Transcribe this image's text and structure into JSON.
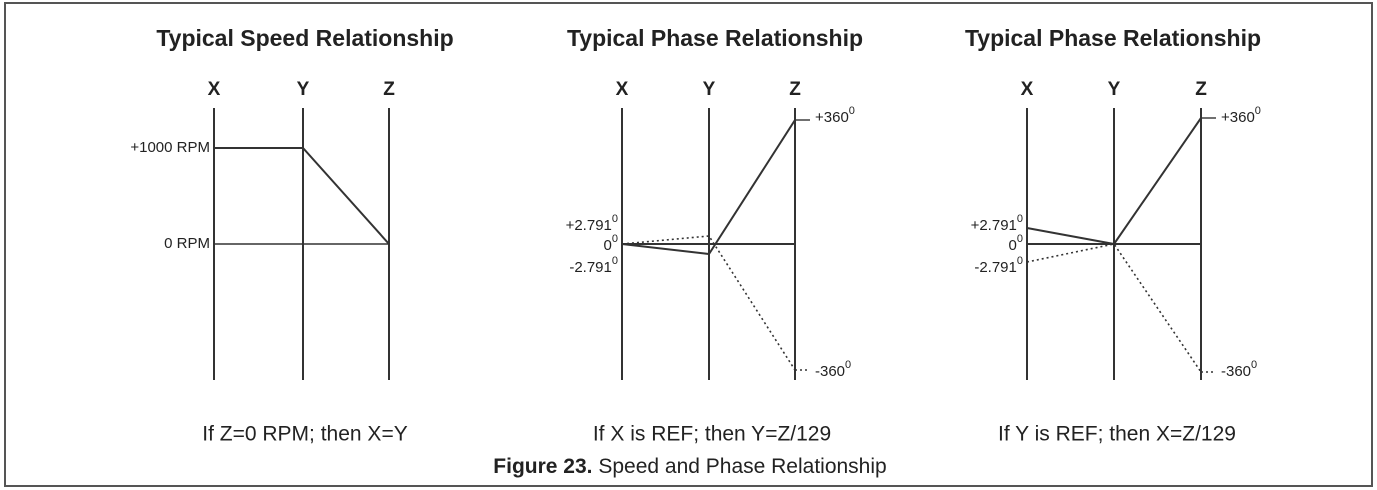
{
  "panels": [
    {
      "title": "Typical Speed Relationship",
      "axes": [
        "X",
        "Y",
        "Z"
      ],
      "labels": [
        {
          "text": "+1000 RPM"
        },
        {
          "text": "0 RPM"
        }
      ],
      "caption": "If Z=0 RPM; then X=Y"
    },
    {
      "title": "Typical Phase Relationship",
      "axes": [
        "X",
        "Y",
        "Z"
      ],
      "labels": [
        {
          "text": "+2.791",
          "sup": "0"
        },
        {
          "text": "0",
          "sup": "0"
        },
        {
          "text": "-2.791",
          "sup": "0"
        },
        {
          "text": "+360",
          "sup": "0"
        },
        {
          "text": "-360",
          "sup": "0"
        }
      ],
      "caption": "If X is REF; then Y=Z/129"
    },
    {
      "title": "Typical Phase Relationship",
      "axes": [
        "X",
        "Y",
        "Z"
      ],
      "labels": [
        {
          "text": "+2.791",
          "sup": "0"
        },
        {
          "text": "0",
          "sup": "0"
        },
        {
          "text": "-2.791",
          "sup": "0"
        },
        {
          "text": "+360",
          "sup": "0"
        },
        {
          "text": "-360",
          "sup": "0"
        }
      ],
      "caption": "If Y is REF; then X=Z/129"
    }
  ],
  "figure": {
    "number": "Figure 23.",
    "caption": "Speed and Phase Relationship"
  }
}
